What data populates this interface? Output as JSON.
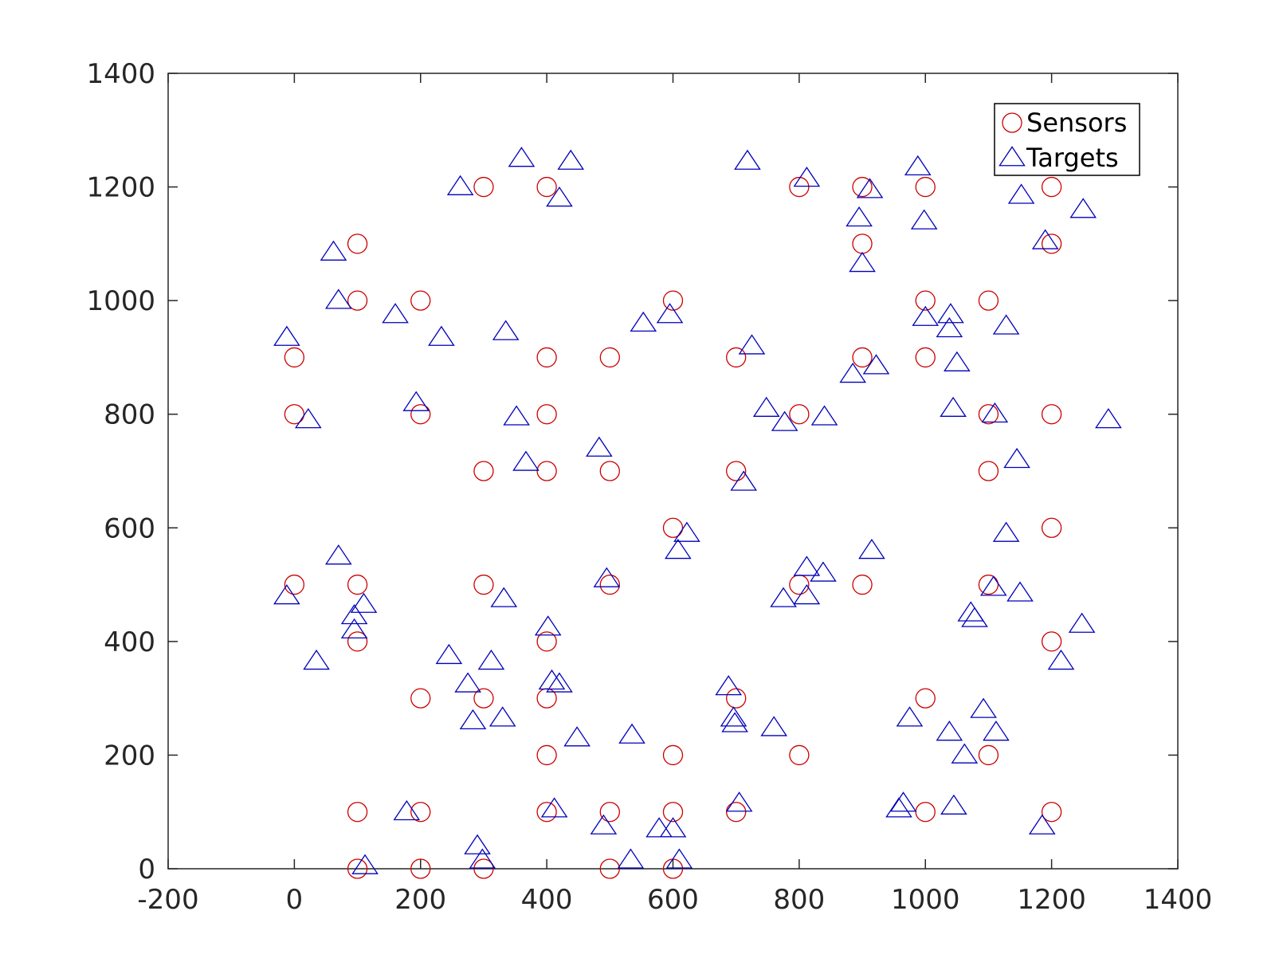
{
  "chart_data": {
    "type": "scatter",
    "title": "",
    "xlabel": "",
    "ylabel": "",
    "xlim": [
      -200,
      1400
    ],
    "ylim": [
      0,
      1400
    ],
    "xticks": [
      -200,
      0,
      200,
      400,
      600,
      800,
      1000,
      1200,
      1400
    ],
    "yticks": [
      0,
      200,
      400,
      600,
      800,
      1000,
      1200,
      1400
    ],
    "grid": false,
    "legend_position": "top-right",
    "series": [
      {
        "name": "Sensors",
        "marker": "circle",
        "color": "#cc0000",
        "points": [
          [
            300,
            1200
          ],
          [
            400,
            1200
          ],
          [
            800,
            1200
          ],
          [
            900,
            1200
          ],
          [
            1000,
            1200
          ],
          [
            1200,
            1200
          ],
          [
            100,
            1100
          ],
          [
            900,
            1100
          ],
          [
            1200,
            1100
          ],
          [
            100,
            1000
          ],
          [
            200,
            1000
          ],
          [
            600,
            1000
          ],
          [
            1000,
            1000
          ],
          [
            1100,
            1000
          ],
          [
            0,
            900
          ],
          [
            400,
            900
          ],
          [
            500,
            900
          ],
          [
            700,
            900
          ],
          [
            900,
            900
          ],
          [
            1000,
            900
          ],
          [
            0,
            800
          ],
          [
            200,
            800
          ],
          [
            400,
            800
          ],
          [
            800,
            800
          ],
          [
            1100,
            800
          ],
          [
            1200,
            800
          ],
          [
            300,
            700
          ],
          [
            400,
            700
          ],
          [
            500,
            700
          ],
          [
            700,
            700
          ],
          [
            1100,
            700
          ],
          [
            600,
            600
          ],
          [
            1200,
            600
          ],
          [
            0,
            500
          ],
          [
            100,
            500
          ],
          [
            300,
            500
          ],
          [
            500,
            500
          ],
          [
            800,
            500
          ],
          [
            900,
            500
          ],
          [
            1100,
            500
          ],
          [
            100,
            400
          ],
          [
            400,
            400
          ],
          [
            1200,
            400
          ],
          [
            200,
            300
          ],
          [
            300,
            300
          ],
          [
            400,
            300
          ],
          [
            700,
            300
          ],
          [
            1000,
            300
          ],
          [
            400,
            200
          ],
          [
            600,
            200
          ],
          [
            800,
            200
          ],
          [
            1100,
            200
          ],
          [
            100,
            100
          ],
          [
            200,
            100
          ],
          [
            400,
            100
          ],
          [
            500,
            100
          ],
          [
            600,
            100
          ],
          [
            700,
            100
          ],
          [
            1000,
            100
          ],
          [
            1200,
            100
          ],
          [
            100,
            0
          ],
          [
            200,
            0
          ],
          [
            300,
            0
          ],
          [
            500,
            0
          ],
          [
            600,
            0
          ]
        ]
      },
      {
        "name": "Targets",
        "marker": "triangle",
        "color": "#0000bb",
        "points": [
          [
            360,
            1250
          ],
          [
            438,
            1245
          ],
          [
            718,
            1245
          ],
          [
            263,
            1200
          ],
          [
            420,
            1180
          ],
          [
            812,
            1215
          ],
          [
            988,
            1235
          ],
          [
            912,
            1195
          ],
          [
            1152,
            1185
          ],
          [
            1250,
            1160
          ],
          [
            998,
            1140
          ],
          [
            895,
            1145
          ],
          [
            62,
            1085
          ],
          [
            1190,
            1105
          ],
          [
            900,
            1065
          ],
          [
            70,
            1000
          ],
          [
            160,
            975
          ],
          [
            595,
            975
          ],
          [
            1000,
            970
          ],
          [
            1040,
            975
          ],
          [
            -12,
            935
          ],
          [
            233,
            935
          ],
          [
            335,
            945
          ],
          [
            553,
            960
          ],
          [
            1128,
            955
          ],
          [
            1038,
            950
          ],
          [
            725,
            920
          ],
          [
            1050,
            890
          ],
          [
            922,
            885
          ],
          [
            885,
            870
          ],
          [
            193,
            820
          ],
          [
            748,
            810
          ],
          [
            1044,
            810
          ],
          [
            22,
            790
          ],
          [
            352,
            795
          ],
          [
            777,
            785
          ],
          [
            840,
            795
          ],
          [
            1110,
            800
          ],
          [
            1290,
            790
          ],
          [
            483,
            740
          ],
          [
            367,
            715
          ],
          [
            1145,
            720
          ],
          [
            712,
            680
          ],
          [
            622,
            590
          ],
          [
            1128,
            590
          ],
          [
            608,
            560
          ],
          [
            915,
            560
          ],
          [
            70,
            550
          ],
          [
            812,
            530
          ],
          [
            838,
            520
          ],
          [
            495,
            510
          ],
          [
            1108,
            495
          ],
          [
            -12,
            480
          ],
          [
            110,
            465
          ],
          [
            332,
            475
          ],
          [
            775,
            475
          ],
          [
            812,
            480
          ],
          [
            1150,
            485
          ],
          [
            95,
            445
          ],
          [
            95,
            420
          ],
          [
            1072,
            450
          ],
          [
            1078,
            440
          ],
          [
            402,
            425
          ],
          [
            1248,
            430
          ],
          [
            35,
            365
          ],
          [
            245,
            375
          ],
          [
            312,
            365
          ],
          [
            1215,
            365
          ],
          [
            275,
            325
          ],
          [
            408,
            330
          ],
          [
            420,
            325
          ],
          [
            688,
            320
          ],
          [
            283,
            260
          ],
          [
            330,
            265
          ],
          [
            696,
            265
          ],
          [
            698,
            255
          ],
          [
            975,
            265
          ],
          [
            1092,
            280
          ],
          [
            448,
            230
          ],
          [
            535,
            235
          ],
          [
            760,
            248
          ],
          [
            1038,
            240
          ],
          [
            1112,
            240
          ],
          [
            1062,
            200
          ],
          [
            178,
            100
          ],
          [
            412,
            105
          ],
          [
            705,
            115
          ],
          [
            965,
            115
          ],
          [
            958,
            105
          ],
          [
            1045,
            110
          ],
          [
            490,
            75
          ],
          [
            578,
            70
          ],
          [
            600,
            70
          ],
          [
            1185,
            75
          ],
          [
            290,
            40
          ],
          [
            298,
            15
          ],
          [
            533,
            15
          ],
          [
            610,
            15
          ],
          [
            112,
            5
          ]
        ]
      }
    ]
  }
}
